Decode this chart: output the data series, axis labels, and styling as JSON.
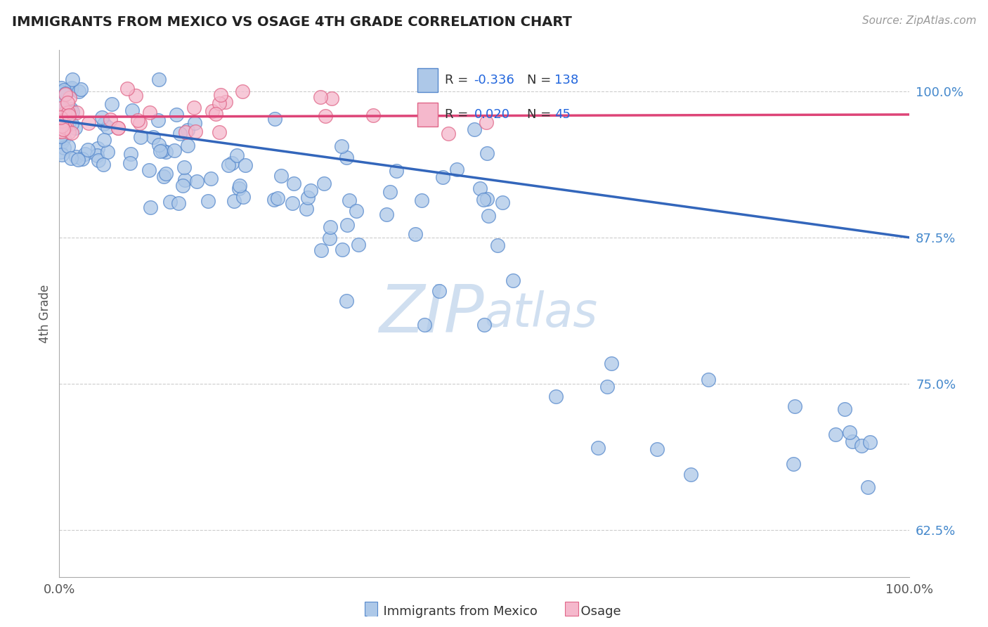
{
  "title": "IMMIGRANTS FROM MEXICO VS OSAGE 4TH GRADE CORRELATION CHART",
  "source_text": "Source: ZipAtlas.com",
  "xlabel_blue": "Immigrants from Mexico",
  "xlabel_pink": "Osage",
  "ylabel": "4th Grade",
  "xlim": [
    0.0,
    1.0
  ],
  "ylim": [
    0.585,
    1.035
  ],
  "yticks": [
    0.625,
    0.75,
    0.875,
    1.0
  ],
  "ytick_labels": [
    "62.5%",
    "75.0%",
    "87.5%",
    "100.0%"
  ],
  "xtick_labels": [
    "0.0%",
    "100.0%"
  ],
  "xtick_positions": [
    0.0,
    1.0
  ],
  "blue_R": "-0.336",
  "blue_N": "138",
  "pink_R": "0.020",
  "pink_N": "45",
  "blue_color": "#adc8e8",
  "blue_edge": "#5588cc",
  "pink_color": "#f5b8cc",
  "pink_edge": "#e06688",
  "trend_blue": "#3366bb",
  "trend_pink": "#dd4477",
  "grid_color": "#cccccc",
  "watermark_color": "#d0dff0",
  "blue_trend_x": [
    0.0,
    1.0
  ],
  "blue_trend_y": [
    0.975,
    0.875
  ],
  "pink_trend_x": [
    0.0,
    1.0
  ],
  "pink_trend_y": [
    0.978,
    0.98
  ]
}
